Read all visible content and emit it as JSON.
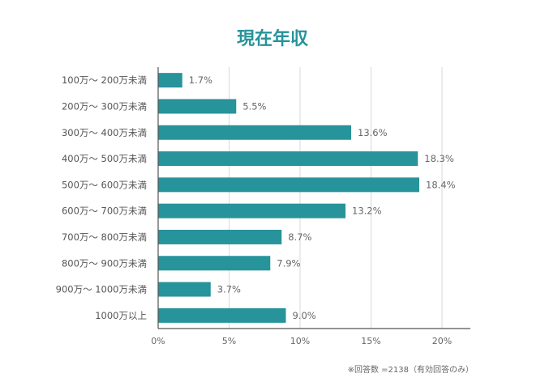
{
  "chart_data": {
    "type": "bar",
    "orientation": "horizontal",
    "title": "現在年収",
    "categories": [
      "100万～ 200万未満",
      "200万～ 300万未満",
      "300万～ 400万未満",
      "400万～ 500万未満",
      "500万～ 600万未満",
      "600万～ 700万未満",
      "700万～ 800万未満",
      "800万～ 900万未満",
      "900万～ 1000万未満",
      "1000万以上"
    ],
    "values": [
      1.7,
      5.5,
      13.6,
      18.3,
      18.4,
      13.2,
      8.7,
      7.9,
      3.7,
      9.0
    ],
    "value_labels": [
      "1.7%",
      "5.5%",
      "13.6%",
      "18.3%",
      "18.4%",
      "13.2%",
      "8.7%",
      "7.9%",
      "3.7%",
      "9.0%"
    ],
    "xlim": [
      0,
      22
    ],
    "xticks": [
      0,
      5,
      10,
      15,
      20
    ],
    "xtick_labels": [
      "0%",
      "5%",
      "10%",
      "15%",
      "20%"
    ],
    "grid": true,
    "bar_color": "#27939a",
    "footnote": "※回答数 =2138（有効回答のみ）"
  }
}
